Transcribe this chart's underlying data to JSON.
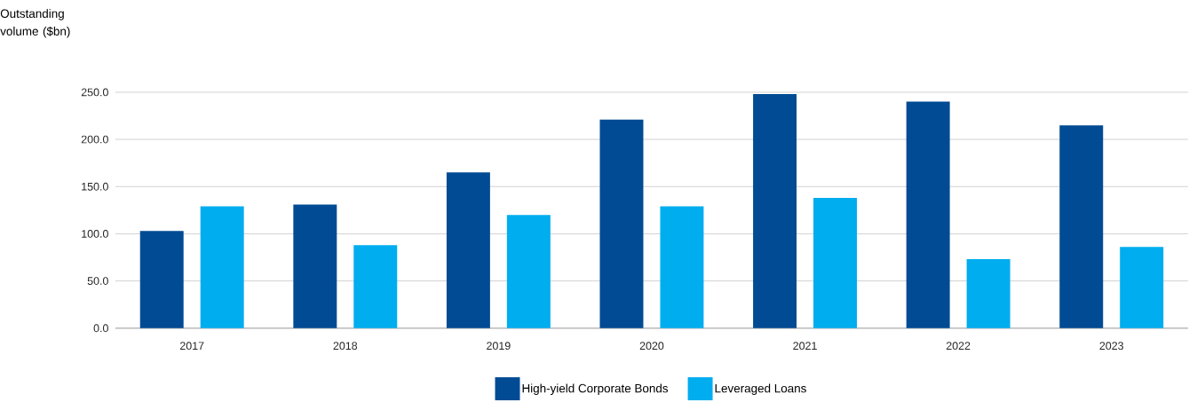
{
  "chart_data": {
    "type": "bar",
    "ylabel": "Outstanding volume ($bn)",
    "categories": [
      "2017",
      "2018",
      "2019",
      "2020",
      "2021",
      "2022",
      "2023"
    ],
    "series": [
      {
        "name": "High-yield Corporate Bonds",
        "color": "#004b93",
        "values": [
          103,
          131,
          165,
          221,
          248,
          240,
          215
        ]
      },
      {
        "name": "Leveraged Loans",
        "color": "#00adef",
        "values": [
          129,
          88,
          120,
          129,
          138,
          73,
          86
        ]
      }
    ],
    "ylim": [
      0,
      250
    ],
    "yticks": [
      {
        "value": 0,
        "label": "0.0"
      },
      {
        "value": 50,
        "label": "50.0"
      },
      {
        "value": 100,
        "label": "100.0"
      },
      {
        "value": 150,
        "label": "150.0"
      },
      {
        "value": 200,
        "label": "200.0"
      },
      {
        "value": 250,
        "label": "250.0"
      }
    ],
    "grid": "y",
    "legend": "bottom"
  }
}
